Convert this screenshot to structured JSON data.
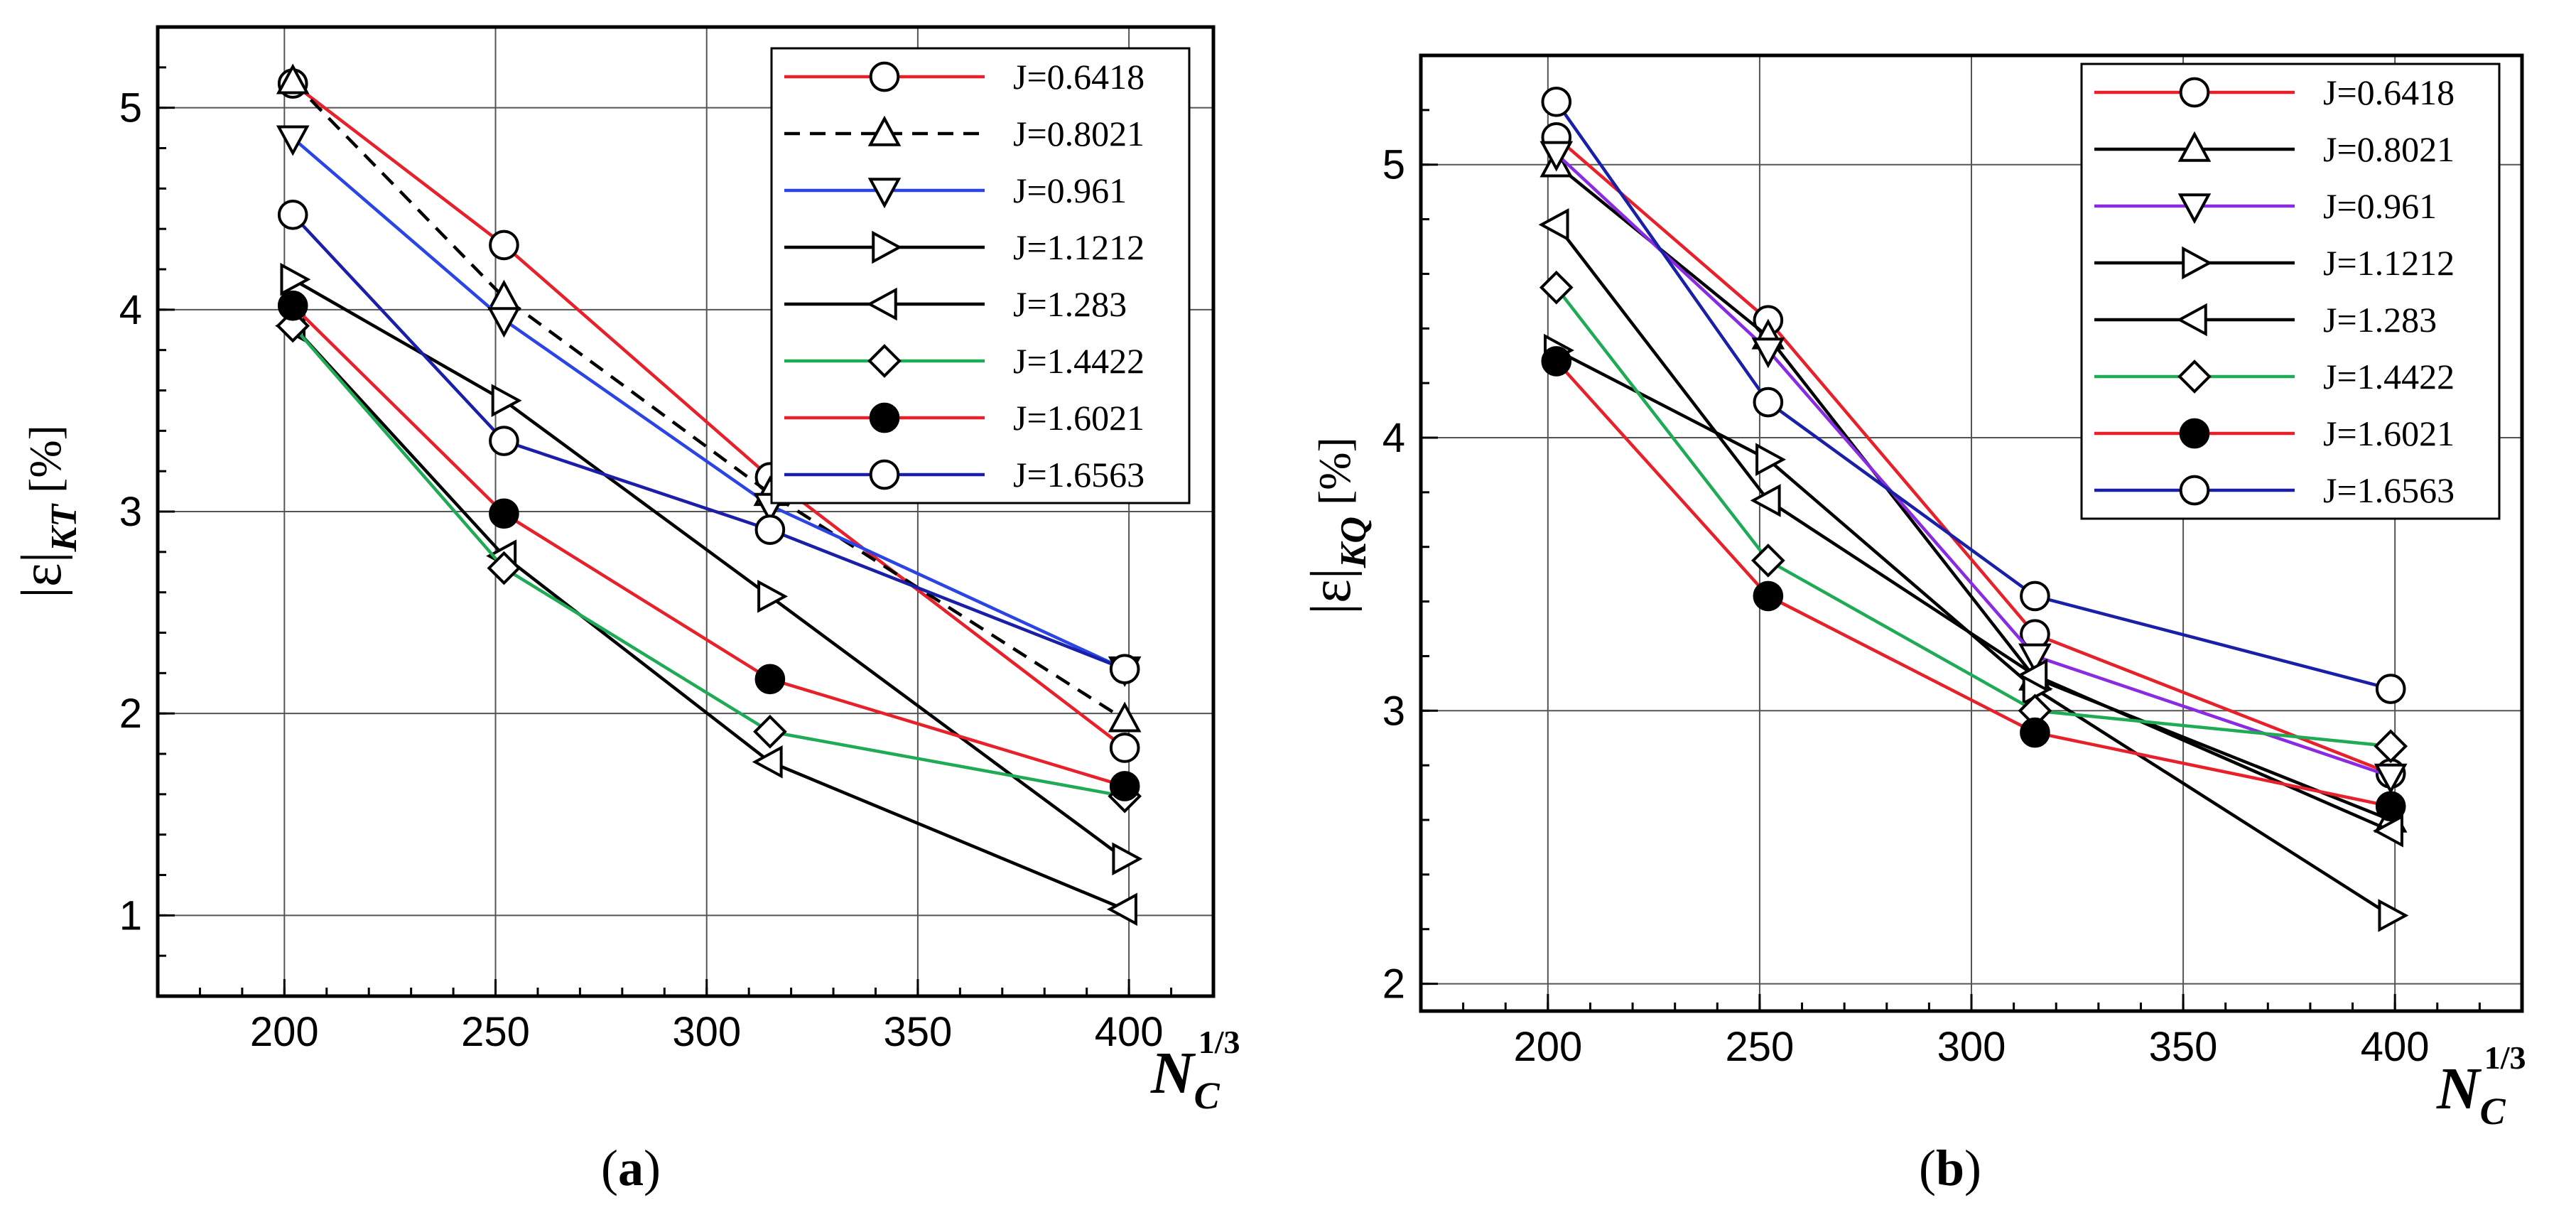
{
  "chart_data": [
    {
      "type": "line",
      "panel": "a",
      "caption_letter": "a",
      "ylabel_main": "|ε|",
      "ylabel_sub": "KT",
      "ylabel_unit": "[%]",
      "xlabel_main": "N",
      "xlabel_sub": "C",
      "xlabel_sup": "1/3",
      "xlim": [
        170,
        420
      ],
      "ylim": [
        0.6,
        5.4
      ],
      "xticks": [
        200,
        250,
        300,
        350,
        400
      ],
      "yticks": [
        1,
        2,
        3,
        4,
        5
      ],
      "grid": true,
      "legend_position": "top-right",
      "series": [
        {
          "name": "J=0.6418",
          "color": "#e8202a",
          "marker": "circle",
          "fill": "open",
          "dashed": false,
          "x": [
            202,
            252,
            315,
            399
          ],
          "y": [
            5.12,
            4.32,
            3.17,
            1.83
          ]
        },
        {
          "name": "J=0.8021",
          "color": "#000000",
          "marker": "triangle-up",
          "fill": "open",
          "dashed": true,
          "x": [
            202,
            252,
            315,
            399
          ],
          "y": [
            5.13,
            4.06,
            3.09,
            1.97
          ]
        },
        {
          "name": "J=0.961",
          "color": "#2b44e6",
          "marker": "triangle-down",
          "fill": "open",
          "dashed": false,
          "x": [
            202,
            252,
            315,
            399
          ],
          "y": [
            4.85,
            3.95,
            3.03,
            2.22
          ]
        },
        {
          "name": "J=1.1212",
          "color": "#000000",
          "marker": "triangle-right",
          "fill": "open",
          "dashed": false,
          "x": [
            202,
            252,
            315,
            399
          ],
          "y": [
            4.15,
            3.55,
            2.58,
            1.28
          ]
        },
        {
          "name": "J=1.283",
          "color": "#000000",
          "marker": "triangle-left",
          "fill": "open",
          "dashed": false,
          "x": [
            202,
            252,
            315,
            399
          ],
          "y": [
            3.92,
            2.78,
            1.76,
            1.03
          ]
        },
        {
          "name": "J=1.4422",
          "color": "#1faa55",
          "marker": "diamond",
          "fill": "open",
          "dashed": false,
          "x": [
            202,
            252,
            315,
            399
          ],
          "y": [
            3.92,
            2.72,
            1.91,
            1.59
          ]
        },
        {
          "name": "J=1.6021",
          "color": "#e8202a",
          "marker": "circle",
          "fill": "filled",
          "dashed": false,
          "x": [
            202,
            252,
            315,
            399
          ],
          "y": [
            4.02,
            2.99,
            2.17,
            1.64
          ]
        },
        {
          "name": "J=1.6563",
          "color": "#1a1fa8",
          "marker": "circle",
          "fill": "open",
          "dashed": false,
          "x": [
            202,
            252,
            315,
            399
          ],
          "y": [
            4.47,
            3.35,
            2.91,
            2.22
          ]
        }
      ]
    },
    {
      "type": "line",
      "panel": "b",
      "caption_letter": "b",
      "ylabel_main": "|ε|",
      "ylabel_sub": "KQ",
      "ylabel_unit": "[%]",
      "xlabel_main": "N",
      "xlabel_sub": "C",
      "xlabel_sup": "1/3",
      "xlim": [
        170,
        430
      ],
      "ylim": [
        1.9,
        5.4
      ],
      "xticks": [
        200,
        250,
        300,
        350,
        400
      ],
      "yticks": [
        2,
        3,
        4,
        5
      ],
      "grid": true,
      "legend_position": "top-right",
      "series": [
        {
          "name": "J=0.6418",
          "color": "#e8202a",
          "marker": "circle",
          "fill": "open",
          "dashed": false,
          "x": [
            202,
            252,
            315,
            399
          ],
          "y": [
            5.1,
            4.43,
            3.28,
            2.77
          ]
        },
        {
          "name": "J=0.8021",
          "color": "#000000",
          "marker": "triangle-up",
          "fill": "open",
          "dashed": false,
          "x": [
            202,
            252,
            315,
            399
          ],
          "y": [
            5.0,
            4.37,
            3.12,
            2.6
          ]
        },
        {
          "name": "J=0.961",
          "color": "#8a2be2",
          "marker": "triangle-down",
          "fill": "open",
          "dashed": false,
          "x": [
            202,
            252,
            315,
            399
          ],
          "y": [
            5.04,
            4.32,
            3.2,
            2.76
          ]
        },
        {
          "name": "J=1.1212",
          "color": "#000000",
          "marker": "triangle-right",
          "fill": "open",
          "dashed": false,
          "x": [
            202,
            252,
            315,
            399
          ],
          "y": [
            4.32,
            3.92,
            3.08,
            2.25
          ]
        },
        {
          "name": "J=1.283",
          "color": "#000000",
          "marker": "triangle-left",
          "fill": "open",
          "dashed": false,
          "x": [
            202,
            252,
            315,
            399
          ],
          "y": [
            4.78,
            3.77,
            3.13,
            2.56
          ]
        },
        {
          "name": "J=1.4422",
          "color": "#1faa55",
          "marker": "diamond",
          "fill": "open",
          "dashed": false,
          "x": [
            202,
            252,
            315,
            399
          ],
          "y": [
            4.55,
            3.55,
            3.0,
            2.87
          ]
        },
        {
          "name": "J=1.6021",
          "color": "#e8202a",
          "marker": "circle",
          "fill": "filled",
          "dashed": false,
          "x": [
            202,
            252,
            315,
            399
          ],
          "y": [
            4.28,
            3.42,
            2.92,
            2.65
          ]
        },
        {
          "name": "J=1.6563",
          "color": "#1a1fa8",
          "marker": "circle",
          "fill": "open",
          "dashed": false,
          "x": [
            202,
            252,
            315,
            399
          ],
          "y": [
            5.23,
            4.13,
            3.42,
            3.08
          ]
        }
      ]
    }
  ]
}
